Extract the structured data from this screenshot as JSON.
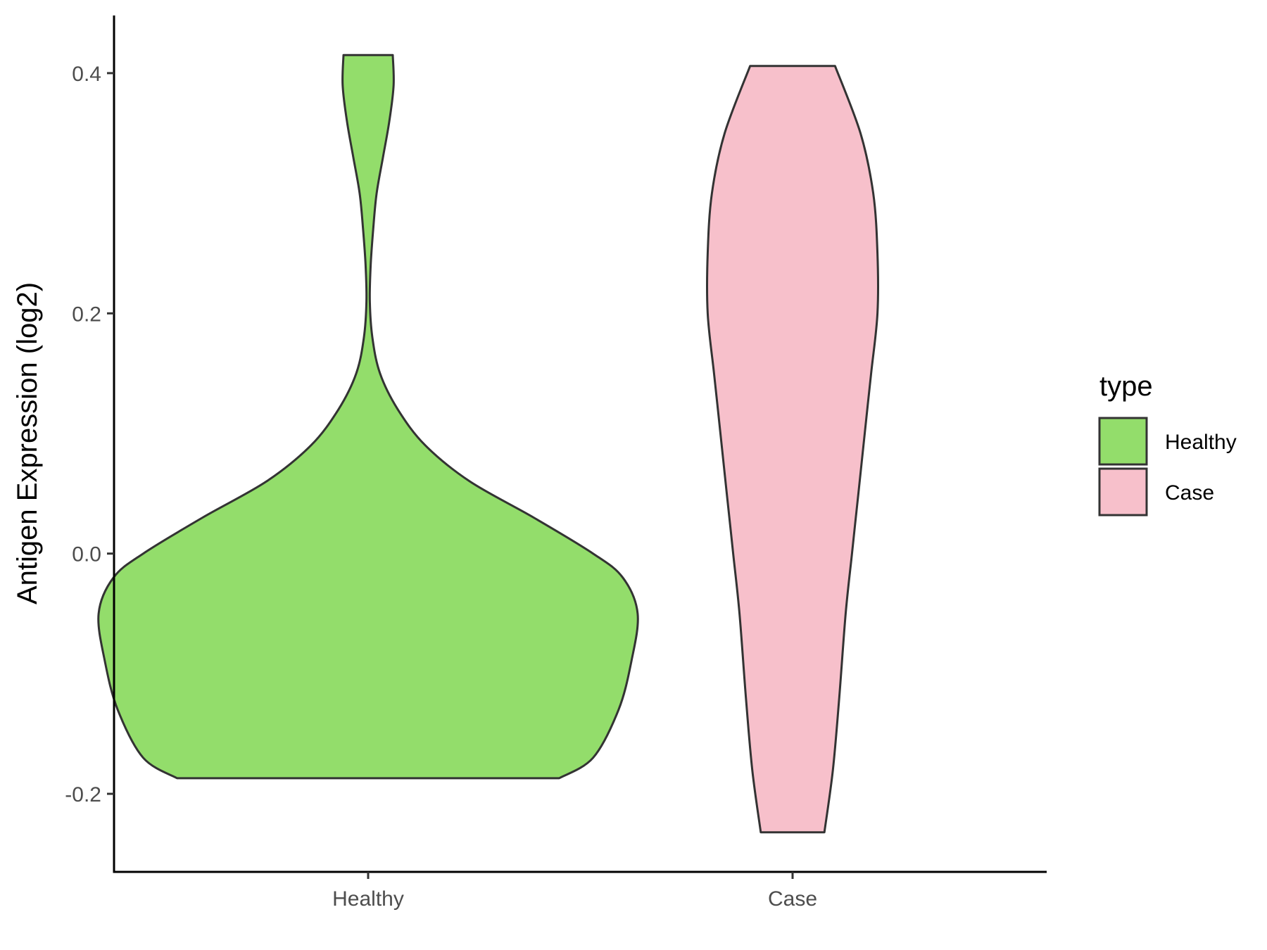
{
  "chart_data": {
    "type": "violin",
    "ylabel": "Antigen Expression (log2)",
    "xlabel": "",
    "ylim": [
      -0.265,
      0.448
    ],
    "y_ticks": [
      {
        "value": -0.2,
        "label": "-0.2"
      },
      {
        "value": 0.0,
        "label": "0.0"
      },
      {
        "value": 0.2,
        "label": "0.2"
      },
      {
        "value": 0.4,
        "label": "0.4"
      }
    ],
    "categories": [
      "Healthy",
      "Case"
    ],
    "legend": {
      "title": "type",
      "position": "right",
      "entries": [
        {
          "label": "Healthy",
          "color": "#93dd6b"
        },
        {
          "label": "Case",
          "color": "#f7c0cb"
        }
      ]
    },
    "grid": false,
    "series": [
      {
        "name": "Healthy",
        "color": "#93dd6b",
        "min": -0.187,
        "max": 0.415,
        "density_profile": [
          {
            "y": -0.187,
            "half_width": 0.45
          },
          {
            "y": -0.17,
            "half_width": 0.53
          },
          {
            "y": -0.13,
            "half_width": 0.59
          },
          {
            "y": -0.09,
            "half_width": 0.62
          },
          {
            "y": -0.05,
            "half_width": 0.635
          },
          {
            "y": -0.02,
            "half_width": 0.6
          },
          {
            "y": 0.0,
            "half_width": 0.53
          },
          {
            "y": 0.03,
            "half_width": 0.39
          },
          {
            "y": 0.06,
            "half_width": 0.24
          },
          {
            "y": 0.09,
            "half_width": 0.135
          },
          {
            "y": 0.12,
            "half_width": 0.07
          },
          {
            "y": 0.15,
            "half_width": 0.028
          },
          {
            "y": 0.18,
            "half_width": 0.01
          },
          {
            "y": 0.21,
            "half_width": 0.004
          },
          {
            "y": 0.24,
            "half_width": 0.006
          },
          {
            "y": 0.27,
            "half_width": 0.012
          },
          {
            "y": 0.3,
            "half_width": 0.02
          },
          {
            "y": 0.33,
            "half_width": 0.035
          },
          {
            "y": 0.36,
            "half_width": 0.05
          },
          {
            "y": 0.39,
            "half_width": 0.06
          },
          {
            "y": 0.415,
            "half_width": 0.058
          }
        ]
      },
      {
        "name": "Case",
        "color": "#f7c0cb",
        "min": -0.232,
        "max": 0.406,
        "density_profile": [
          {
            "y": -0.232,
            "half_width": 0.075
          },
          {
            "y": -0.18,
            "half_width": 0.095
          },
          {
            "y": -0.12,
            "half_width": 0.11
          },
          {
            "y": -0.05,
            "half_width": 0.125
          },
          {
            "y": 0.0,
            "half_width": 0.14
          },
          {
            "y": 0.05,
            "half_width": 0.155
          },
          {
            "y": 0.1,
            "half_width": 0.17
          },
          {
            "y": 0.15,
            "half_width": 0.185
          },
          {
            "y": 0.2,
            "half_width": 0.2
          },
          {
            "y": 0.25,
            "half_width": 0.2
          },
          {
            "y": 0.3,
            "half_width": 0.19
          },
          {
            "y": 0.35,
            "half_width": 0.16
          },
          {
            "y": 0.406,
            "half_width": 0.1
          }
        ]
      }
    ]
  }
}
